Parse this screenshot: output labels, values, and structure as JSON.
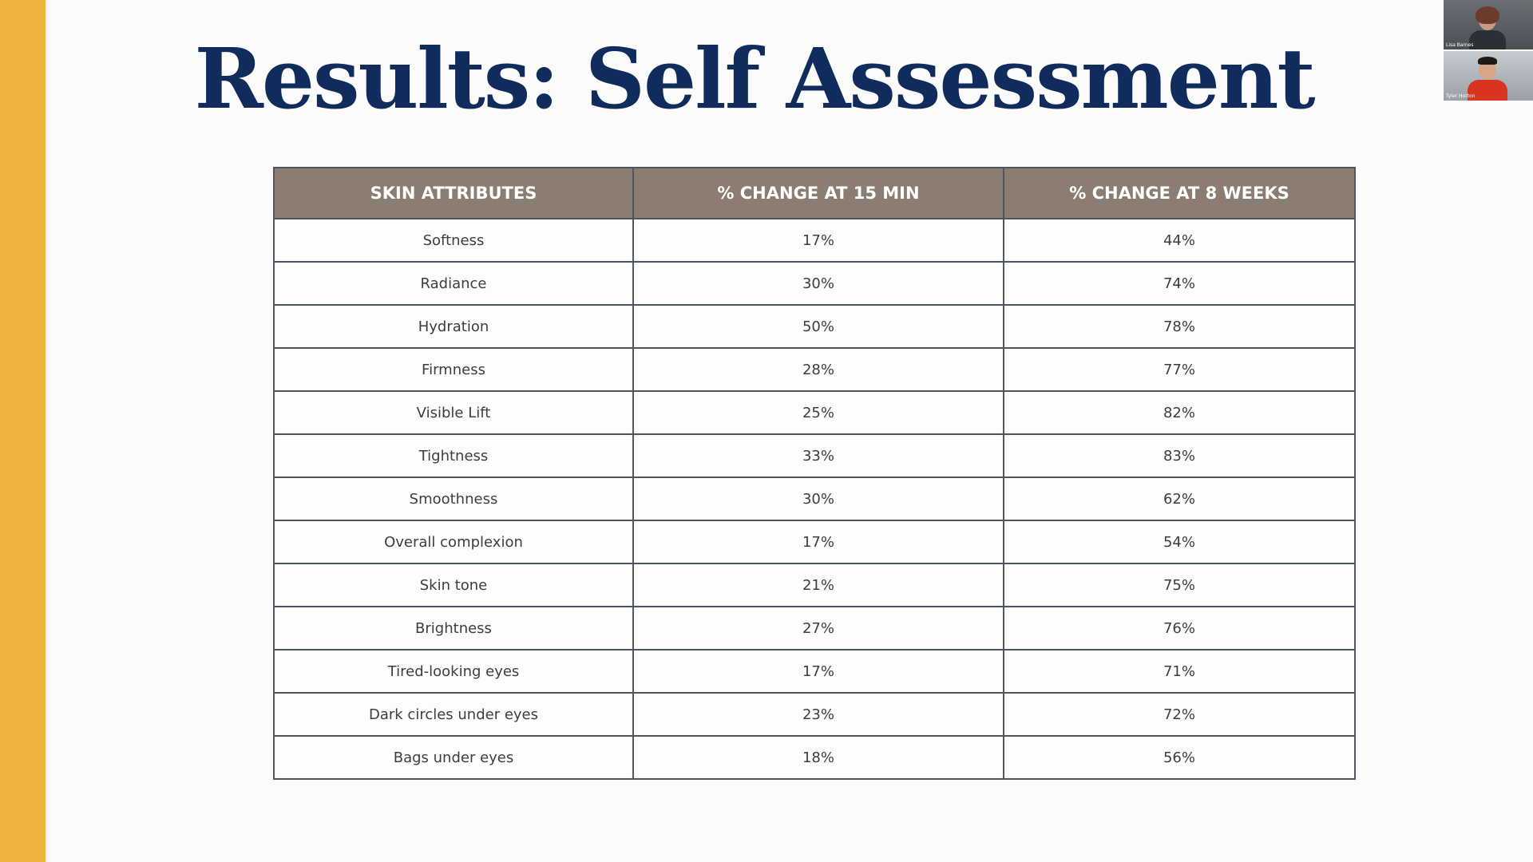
{
  "colors": {
    "accent_bar": "#f0b23f",
    "title": "#0f2c5c",
    "table_header_bg": "#8b7d71",
    "table_border": "#4d5561"
  },
  "slide": {
    "title": "Results: Self Assessment"
  },
  "table": {
    "headers": [
      "SKIN ATTRIBUTES",
      "% CHANGE AT 15 MIN",
      "% CHANGE AT 8 WEEKS"
    ],
    "rows": [
      [
        "Softness",
        "17%",
        "44%"
      ],
      [
        "Radiance",
        "30%",
        "74%"
      ],
      [
        "Hydration",
        "50%",
        "78%"
      ],
      [
        "Firmness",
        "28%",
        "77%"
      ],
      [
        "Visible Lift",
        "25%",
        "82%"
      ],
      [
        "Tightness",
        "33%",
        "83%"
      ],
      [
        "Smoothness",
        "30%",
        "62%"
      ],
      [
        "Overall complexion",
        "17%",
        "54%"
      ],
      [
        "Skin tone",
        "21%",
        "75%"
      ],
      [
        "Brightness",
        "27%",
        "76%"
      ],
      [
        "Tired-looking eyes",
        "17%",
        "71%"
      ],
      [
        "Dark circles under eyes",
        "23%",
        "72%"
      ],
      [
        "Bags under eyes",
        "18%",
        "56%"
      ]
    ]
  },
  "participants": [
    {
      "name": "Lisa Barnes"
    },
    {
      "name": "Tyler Horton"
    }
  ]
}
